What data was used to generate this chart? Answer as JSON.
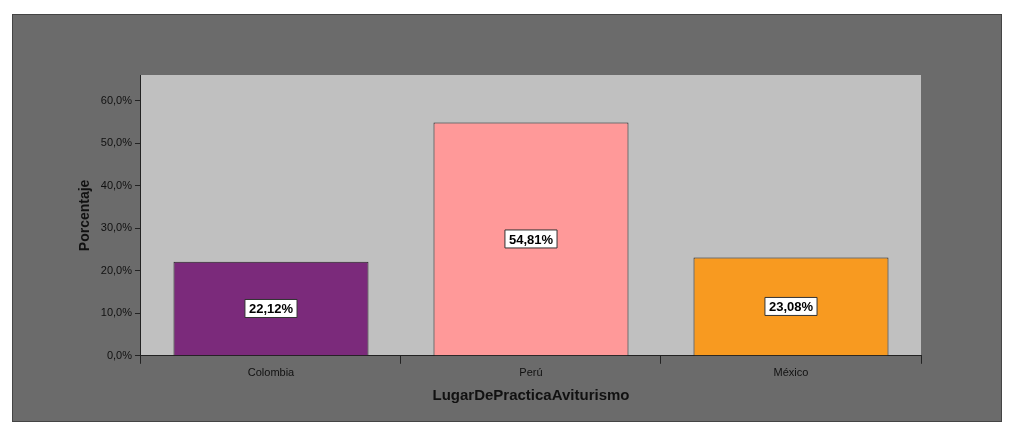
{
  "chart_data": {
    "type": "bar",
    "xlabel": "LugarDePracticaAviturismo",
    "ylabel": "Porcentaje",
    "categories": [
      "Colombia",
      "Perú",
      "México"
    ],
    "values": [
      22.12,
      54.81,
      23.08
    ],
    "colors": [
      "#7b2a7b",
      "#ff9999",
      "#f89a20"
    ],
    "value_labels": [
      "22,12%",
      "54,81%",
      "23,08%"
    ],
    "ylim": [
      0,
      66
    ],
    "yticks": [
      {
        "value": 0,
        "label": "0,0%"
      },
      {
        "value": 10,
        "label": "10,0%"
      },
      {
        "value": 20,
        "label": "20,0%"
      },
      {
        "value": 30,
        "label": "30,0%"
      },
      {
        "value": 40,
        "label": "40,0%"
      },
      {
        "value": 50,
        "label": "50,0%"
      },
      {
        "value": 60,
        "label": "60,0%"
      }
    ],
    "grid": false,
    "legend": false
  }
}
